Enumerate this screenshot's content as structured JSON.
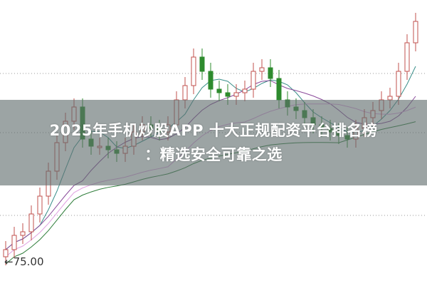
{
  "banner": {
    "line1": "2025年手机炒股APP 十大正规配资平台排名榜",
    "line2": "：精选安全可靠之选"
  },
  "chart_data": {
    "type": "candlestick",
    "price_label": "←75.00",
    "min_marker_value": 75.0,
    "grid": "dotted horizontal",
    "colors": {
      "up": "#c0504d",
      "down": "#2e8b2e",
      "ma5": "#3a8f8a",
      "ma10": "#8a4a9a",
      "ma20": "#e0a0e0",
      "ma60": "#2e7d3a"
    },
    "closes": [
      75.9,
      76.9,
      77.15,
      78.4,
      79.65,
      81.4,
      83.4,
      84.9,
      85.9,
      83.65,
      83.15,
      83.15,
      82.9,
      82.65,
      83.15,
      84.15,
      84.65,
      84.4,
      84.15,
      84.65,
      86.4,
      87.4,
      89.4,
      88.4,
      87.15,
      86.9,
      86.65,
      86.9,
      87.15,
      88.4,
      88.65,
      87.9,
      86.4,
      85.9,
      85.65,
      85.15,
      84.65,
      84.4,
      84.15,
      83.9,
      83.65,
      84.4,
      85.15,
      85.65,
      86.4,
      86.65,
      88.4,
      90.4,
      91.9
    ]
  }
}
